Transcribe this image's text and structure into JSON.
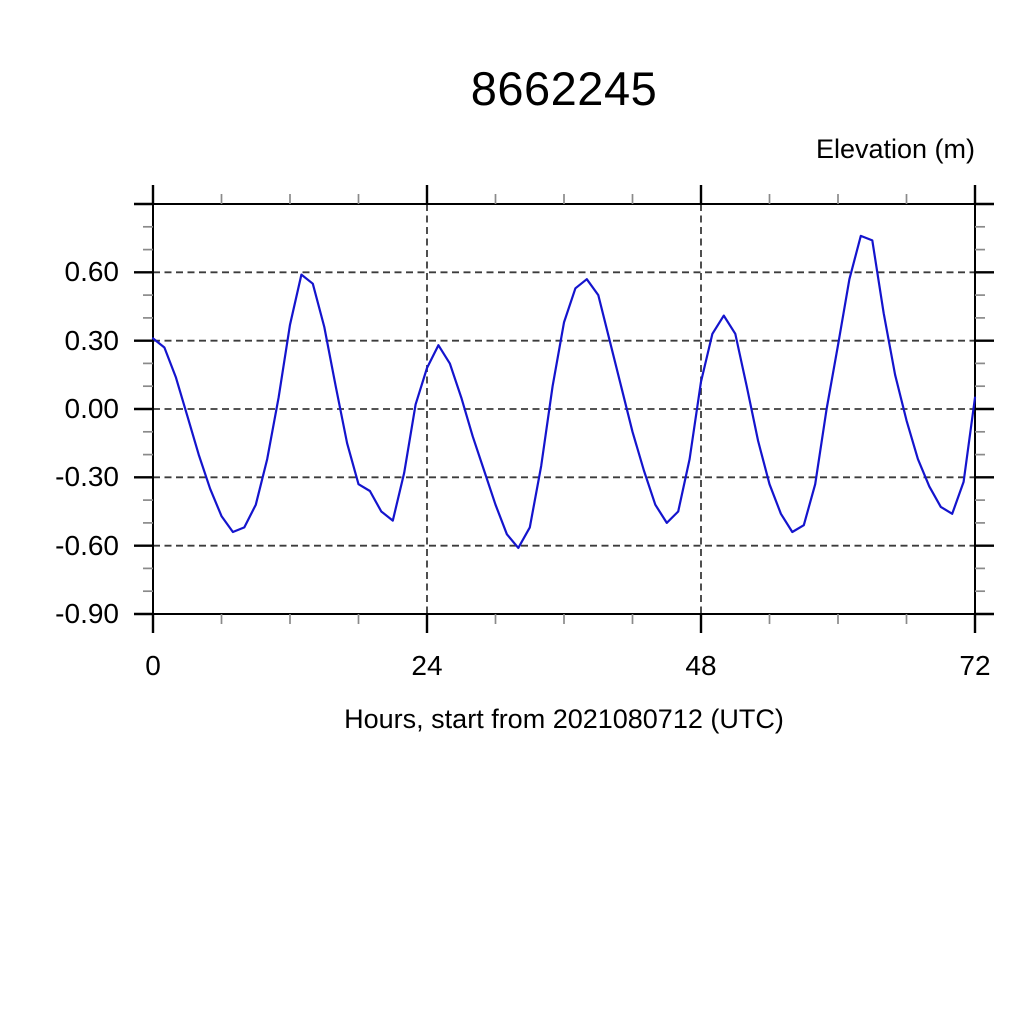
{
  "chart_data": {
    "type": "line",
    "title": "8662245",
    "unit_label": "Elevation (m)",
    "xlabel": "Hours, start from 2021080712 (UTC)",
    "xlim": [
      0,
      72
    ],
    "ylim": [
      -0.9,
      0.9
    ],
    "xtick_labels": [
      "0",
      "24",
      "48",
      "72"
    ],
    "xtick_values": [
      0,
      24,
      48,
      72
    ],
    "xtick_minor_step": 6,
    "ytick_labels": [
      "-0.90",
      "-0.60",
      "-0.30",
      "0.00",
      "0.30",
      "0.60"
    ],
    "ytick_values": [
      -0.9,
      -0.6,
      -0.3,
      0.0,
      0.3,
      0.6
    ],
    "ytick_minor_step": 0.1,
    "grid": {
      "style": "dashed",
      "x_values": [
        24,
        48
      ],
      "y_values": [
        -0.9,
        -0.6,
        -0.3,
        0.0,
        0.3,
        0.6
      ]
    },
    "line_color": "#1414cd",
    "grid_color": "#3c3c3c",
    "minor_tick_color": "#8a8a8a",
    "frame_color": "#000000",
    "x_hours": [
      0,
      1,
      2,
      3,
      4,
      5,
      6,
      7,
      8,
      9,
      10,
      11,
      12,
      13,
      14,
      15,
      16,
      17,
      18,
      19,
      20,
      21,
      22,
      23,
      24,
      25,
      26,
      27,
      28,
      29,
      30,
      31,
      32,
      33,
      34,
      35,
      36,
      37,
      38,
      39,
      40,
      41,
      42,
      43,
      44,
      45,
      46,
      47,
      48,
      49,
      50,
      51,
      52,
      53,
      54,
      55,
      56,
      57,
      58,
      59,
      60,
      61,
      62,
      63,
      64,
      65,
      66,
      67,
      68,
      69,
      70,
      71,
      72
    ],
    "series": [
      {
        "name": "elevation",
        "values": [
          0.31,
          0.27,
          0.14,
          -0.03,
          -0.2,
          -0.35,
          -0.47,
          -0.54,
          -0.52,
          -0.42,
          -0.22,
          0.05,
          0.37,
          0.59,
          0.55,
          0.36,
          0.1,
          -0.15,
          -0.33,
          -0.36,
          -0.45,
          -0.49,
          -0.28,
          0.02,
          0.18,
          0.28,
          0.2,
          0.05,
          -0.12,
          -0.27,
          -0.42,
          -0.55,
          -0.61,
          -0.52,
          -0.25,
          0.1,
          0.38,
          0.53,
          0.57,
          0.5,
          0.3,
          0.1,
          -0.1,
          -0.27,
          -0.42,
          -0.5,
          -0.45,
          -0.22,
          0.12,
          0.33,
          0.41,
          0.33,
          0.1,
          -0.14,
          -0.33,
          -0.46,
          -0.54,
          -0.51,
          -0.33,
          0.0,
          0.28,
          0.57,
          0.76,
          0.74,
          0.42,
          0.15,
          -0.05,
          -0.22,
          -0.34,
          -0.43,
          -0.46,
          -0.32,
          0.05
        ]
      }
    ]
  }
}
